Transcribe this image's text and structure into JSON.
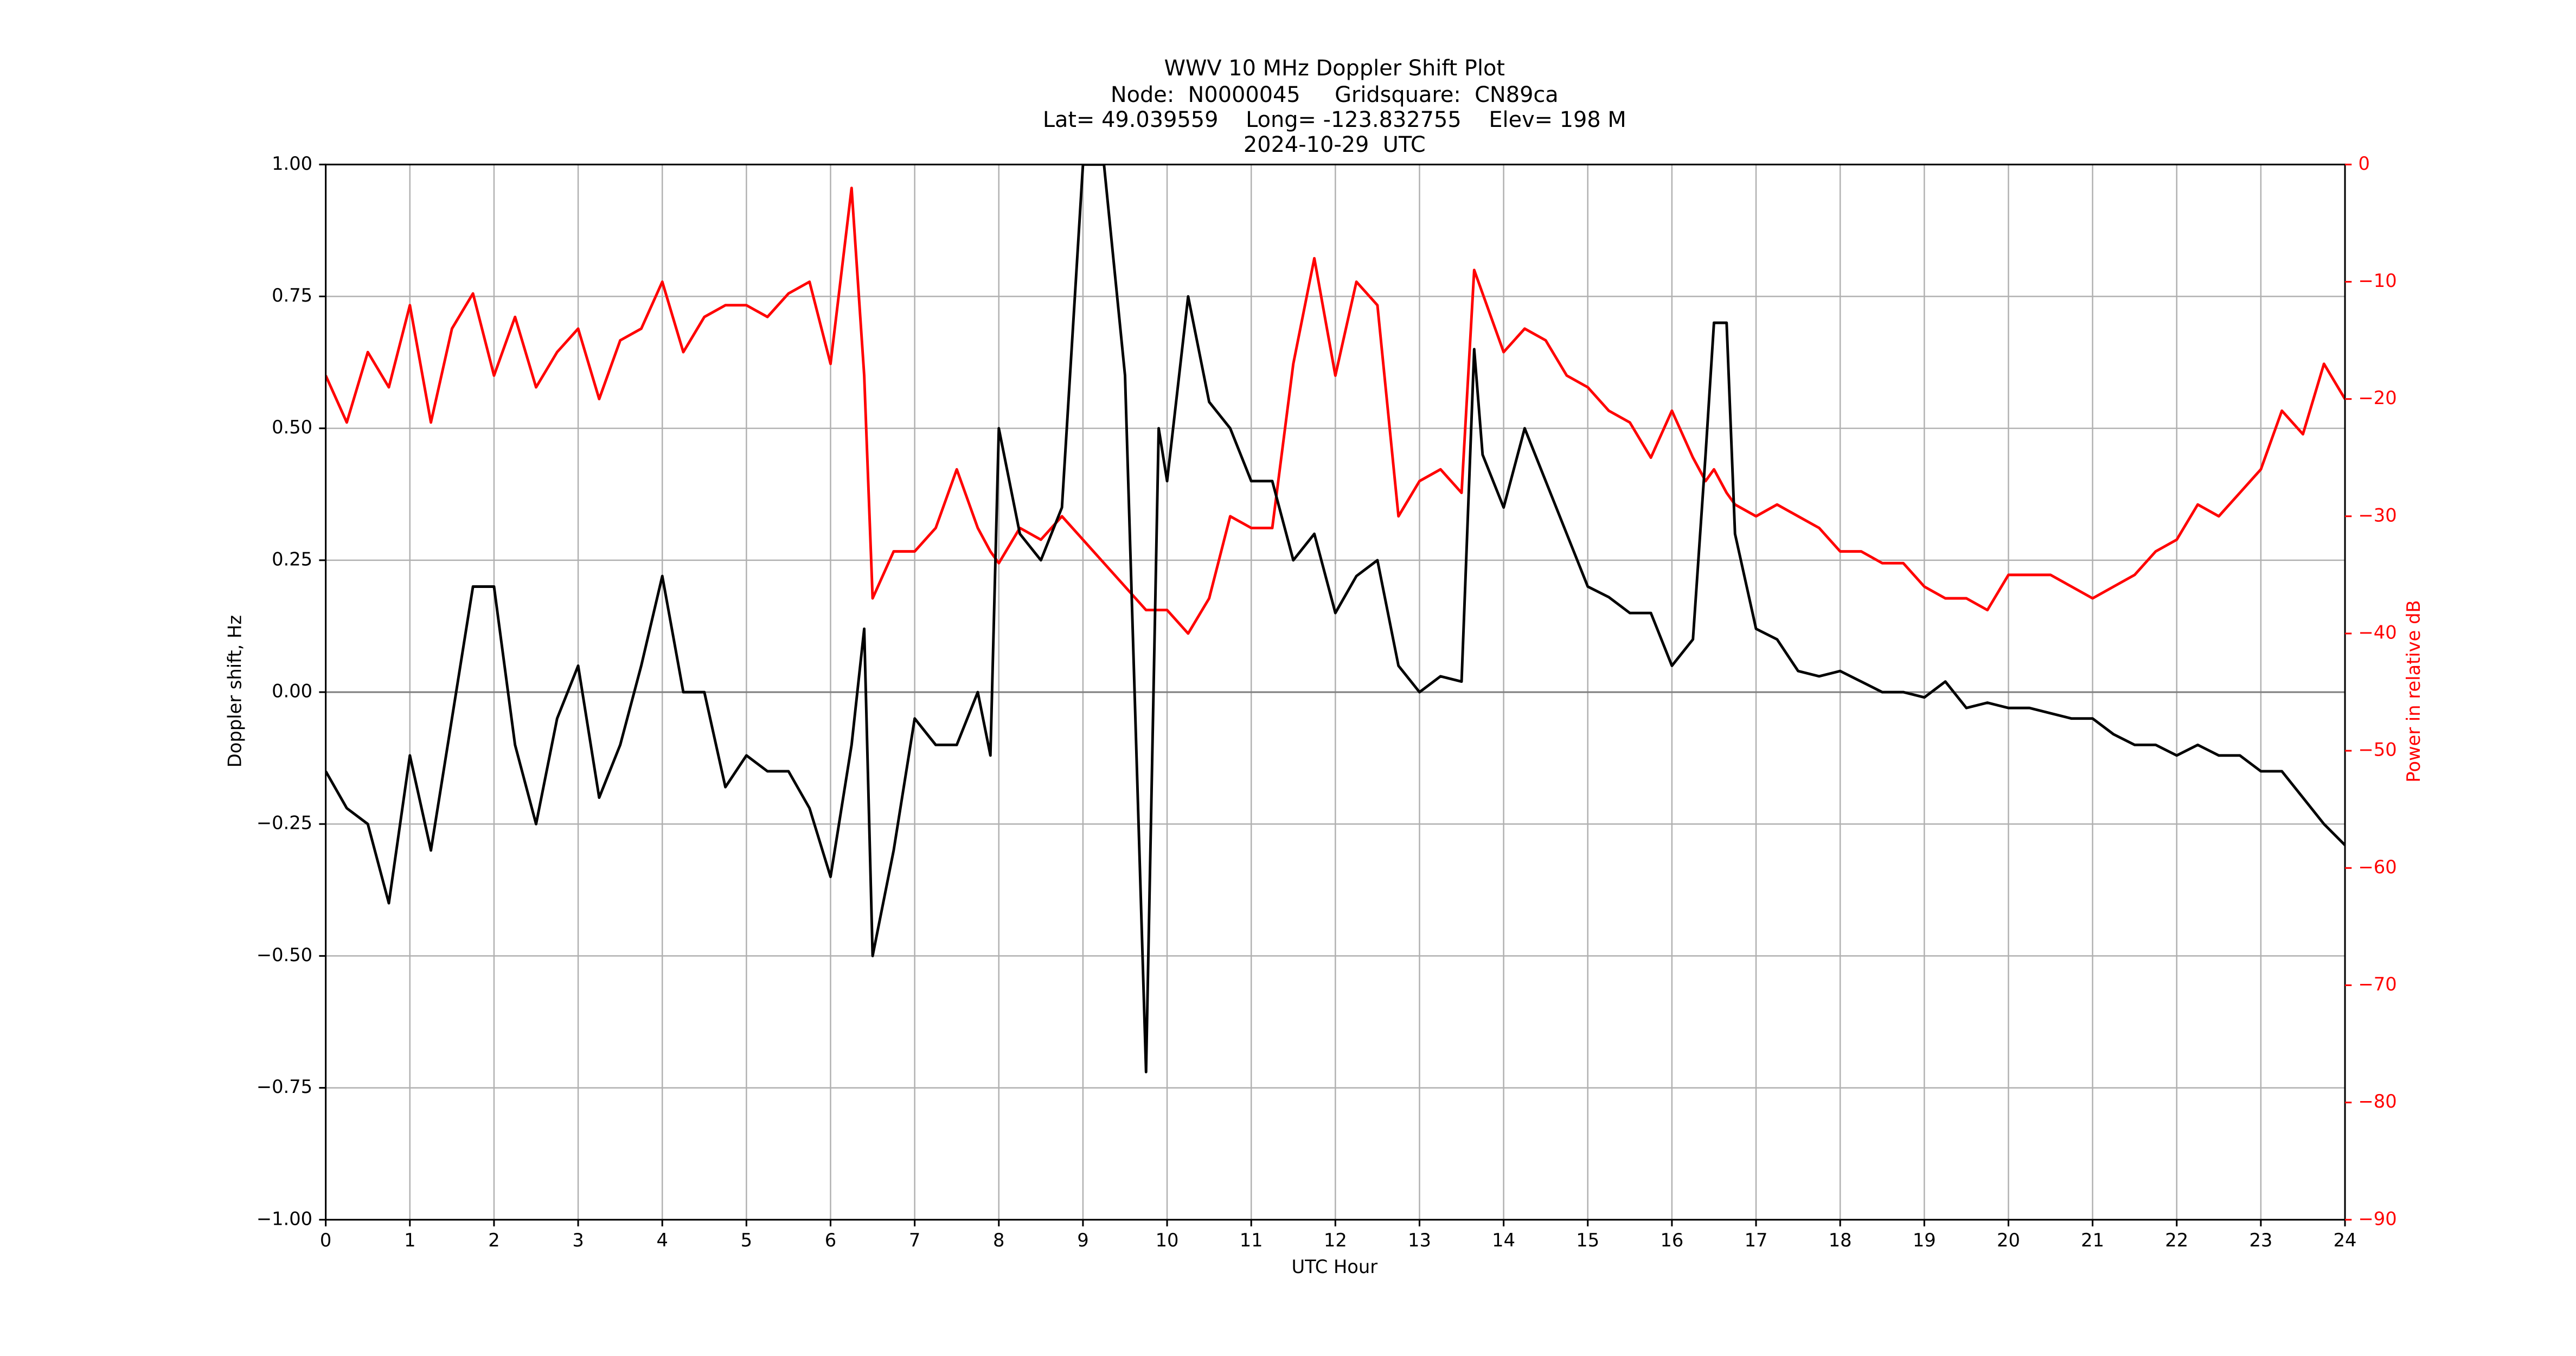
{
  "chart_data": {
    "type": "line",
    "title": [
      "WWV 10 MHz Doppler Shift Plot",
      "Node:  N0000045     Gridsquare:  CN89ca",
      "Lat= 49.039559    Long= -123.832755    Elev= 198 M",
      "2024-10-29  UTC"
    ],
    "xlabel": "UTC Hour",
    "ylabel": "Doppler shift, Hz",
    "y2label": "Power in relative dB",
    "x": [
      0,
      0.25,
      0.5,
      0.75,
      1,
      1.25,
      1.5,
      1.75,
      2,
      2.25,
      2.5,
      2.75,
      3,
      3.25,
      3.5,
      3.75,
      4,
      4.25,
      4.5,
      4.75,
      5,
      5.25,
      5.5,
      5.75,
      6,
      6.25,
      6.4,
      6.5,
      6.75,
      7,
      7.25,
      7.5,
      7.75,
      7.9,
      8,
      8.25,
      8.5,
      8.75,
      9,
      9.25,
      9.5,
      9.75,
      9.9,
      10,
      10.25,
      10.5,
      10.75,
      11,
      11.25,
      11.5,
      11.75,
      12,
      12.25,
      12.5,
      12.75,
      13,
      13.25,
      13.5,
      13.65,
      13.75,
      14,
      14.25,
      14.5,
      14.75,
      15,
      15.25,
      15.5,
      15.75,
      16,
      16.25,
      16.4,
      16.5,
      16.65,
      16.75,
      17,
      17.25,
      17.5,
      17.75,
      18,
      18.25,
      18.5,
      18.75,
      19,
      19.25,
      19.5,
      19.75,
      20,
      20.25,
      20.5,
      20.75,
      21,
      21.25,
      21.5,
      21.75,
      22,
      22.25,
      22.5,
      22.75,
      23,
      23.25,
      23.5,
      23.75,
      24
    ],
    "series": [
      {
        "name": "Doppler shift, Hz",
        "color": "#000000",
        "values": [
          -0.15,
          -0.22,
          -0.25,
          -0.4,
          -0.12,
          -0.3,
          -0.05,
          0.2,
          0.2,
          -0.1,
          -0.25,
          -0.05,
          0.05,
          -0.2,
          -0.1,
          0.05,
          0.22,
          0,
          0,
          -0.18,
          -0.12,
          -0.15,
          -0.15,
          -0.22,
          -0.35,
          -0.1,
          0.12,
          -0.5,
          -0.3,
          -0.05,
          -0.1,
          -0.1,
          0,
          -0.12,
          0.5,
          0.3,
          0.25,
          0.35,
          1,
          1,
          0.6,
          -0.72,
          0.5,
          0.4,
          0.75,
          0.55,
          0.5,
          0.4,
          0.4,
          0.25,
          0.3,
          0.15,
          0.22,
          0.25,
          0.05,
          0,
          0.03,
          0.02,
          0.65,
          0.45,
          0.35,
          0.5,
          0.4,
          0.3,
          0.2,
          0.18,
          0.15,
          0.15,
          0.05,
          0.1,
          0.45,
          0.7,
          0.7,
          0.3,
          0.12,
          0.1,
          0.04,
          0.03,
          0.04,
          0.02,
          0,
          0,
          -0.01,
          0.02,
          -0.03,
          -0.02,
          -0.03,
          -0.03,
          -0.04,
          -0.05,
          -0.05,
          -0.08,
          -0.1,
          -0.1,
          -0.12,
          -0.1,
          -0.12,
          -0.12,
          -0.15,
          -0.15,
          -0.2,
          -0.25,
          -0.29
        ]
      },
      {
        "name": "Power in relative dB",
        "color": "#ff0000",
        "axis": "y2",
        "values": [
          -18,
          -22,
          -16,
          -19,
          -12,
          -22,
          -14,
          -11,
          -18,
          -13,
          -19,
          -16,
          -14,
          -20,
          -15,
          -14,
          -10,
          -16,
          -13,
          -12,
          -12,
          -13,
          -11,
          -10,
          -17,
          -2,
          -18,
          -37,
          -33,
          -33,
          -31,
          -26,
          -31,
          -33,
          -34,
          -31,
          -32,
          -30,
          -32,
          -34,
          -36,
          -38,
          -38,
          -38,
          -40,
          -37,
          -30,
          -31,
          -31,
          -17,
          -8,
          -18,
          -10,
          -12,
          -30,
          -27,
          -26,
          -28,
          -9,
          -11,
          -16,
          -14,
          -15,
          -18,
          -19,
          -21,
          -22,
          -25,
          -21,
          -25,
          -27,
          -26,
          -28,
          -29,
          -30,
          -29,
          -30,
          -31,
          -33,
          -33,
          -34,
          -34,
          -36,
          -37,
          -37,
          -38,
          -35,
          -35,
          -35,
          -36,
          -37,
          -36,
          -35,
          -33,
          -32,
          -29,
          -30,
          -28,
          -26,
          -21,
          -23,
          -17,
          -20
        ]
      }
    ],
    "xlim": [
      0,
      24
    ],
    "xticks": [
      0,
      1,
      2,
      3,
      4,
      5,
      6,
      7,
      8,
      9,
      10,
      11,
      12,
      13,
      14,
      15,
      16,
      17,
      18,
      19,
      20,
      21,
      22,
      23,
      24
    ],
    "ylim": [
      -1,
      1
    ],
    "yticks": [
      {
        "value": -1,
        "label": "−1.00"
      },
      {
        "value": -0.75,
        "label": "−0.75"
      },
      {
        "value": -0.5,
        "label": "−0.50"
      },
      {
        "value": -0.25,
        "label": "−0.25"
      },
      {
        "value": 0,
        "label": "0.00"
      },
      {
        "value": 0.25,
        "label": "0.25"
      },
      {
        "value": 0.5,
        "label": "0.50"
      },
      {
        "value": 0.75,
        "label": "0.75"
      },
      {
        "value": 1,
        "label": "1.00"
      }
    ],
    "y2lim": [
      -90,
      0
    ],
    "y2ticks": [
      {
        "value": -90,
        "label": "−90"
      },
      {
        "value": -80,
        "label": "−80"
      },
      {
        "value": -70,
        "label": "−70"
      },
      {
        "value": -60,
        "label": "−60"
      },
      {
        "value": -50,
        "label": "−50"
      },
      {
        "value": -40,
        "label": "−40"
      },
      {
        "value": -30,
        "label": "−30"
      },
      {
        "value": -20,
        "label": "−20"
      },
      {
        "value": -10,
        "label": "−10"
      },
      0
    ],
    "grid": true
  }
}
